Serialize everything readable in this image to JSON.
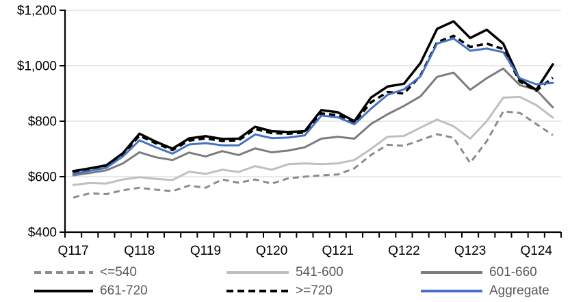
{
  "chart_data": {
    "type": "line",
    "title": "",
    "xlabel": "",
    "ylabel": "",
    "grid": true,
    "legend_position": "bottom",
    "y_axis": {
      "min": 400,
      "max": 1200,
      "step": 200,
      "tick_labels": [
        "$400",
        "$600",
        "$800",
        "$1,000",
        "$1,200"
      ]
    },
    "x_axis": {
      "shown_tick_labels": [
        "Q117",
        "Q118",
        "Q119",
        "Q120",
        "Q121",
        "Q122",
        "Q123",
        "Q124"
      ],
      "label_every_n_points": 4
    },
    "categories": [
      "Q117",
      "Q217",
      "Q317",
      "Q417",
      "Q118",
      "Q218",
      "Q318",
      "Q418",
      "Q119",
      "Q219",
      "Q319",
      "Q419",
      "Q120",
      "Q220",
      "Q320",
      "Q420",
      "Q121",
      "Q221",
      "Q321",
      "Q421",
      "Q122",
      "Q222",
      "Q322",
      "Q422",
      "Q123",
      "Q223",
      "Q323",
      "Q423",
      "Q124",
      "Q224"
    ],
    "series": [
      {
        "name": "<=540",
        "color": "#8c8c8c",
        "style": "dashed",
        "width": 3,
        "values": [
          525,
          540,
          537,
          551,
          560,
          553,
          548,
          568,
          560,
          590,
          578,
          590,
          575,
          594,
          600,
          605,
          608,
          630,
          678,
          715,
          711,
          732,
          753,
          740,
          650,
          728,
          835,
          830,
          790,
          750
        ]
      },
      {
        "name": "541-600",
        "color": "#bfbfbf",
        "style": "solid",
        "width": 3,
        "values": [
          570,
          577,
          575,
          590,
          598,
          592,
          588,
          618,
          610,
          625,
          617,
          638,
          625,
          645,
          648,
          645,
          648,
          660,
          700,
          744,
          747,
          777,
          806,
          782,
          737,
          800,
          885,
          888,
          858,
          813
        ]
      },
      {
        "name": "601-660",
        "color": "#7c7c7c",
        "style": "solid",
        "width": 3,
        "values": [
          605,
          613,
          623,
          648,
          688,
          670,
          660,
          687,
          673,
          692,
          678,
          702,
          688,
          694,
          706,
          737,
          744,
          737,
          790,
          825,
          855,
          890,
          960,
          975,
          913,
          955,
          990,
          930,
          913,
          850
        ]
      },
      {
        "name": "661-720",
        "color": "#000000",
        "style": "solid",
        "width": 3.5,
        "values": [
          620,
          630,
          641,
          685,
          755,
          726,
          701,
          738,
          746,
          736,
          737,
          780,
          764,
          761,
          764,
          840,
          832,
          800,
          885,
          925,
          935,
          1010,
          1133,
          1160,
          1100,
          1130,
          1080,
          950,
          913,
          1005
        ]
      },
      {
        "name": ">=720",
        "color": "#000000",
        "style": "dashed",
        "width": 3.5,
        "values": [
          616,
          626,
          637,
          680,
          748,
          720,
          696,
          730,
          738,
          729,
          731,
          772,
          757,
          755,
          759,
          828,
          822,
          795,
          868,
          905,
          900,
          965,
          1085,
          1108,
          1068,
          1080,
          1060,
          943,
          910,
          957
        ]
      },
      {
        "name": "Aggregate",
        "color": "#4472c4",
        "style": "solid",
        "width": 3,
        "values": [
          610,
          621,
          632,
          673,
          731,
          706,
          683,
          716,
          721,
          713,
          713,
          752,
          739,
          741,
          749,
          820,
          814,
          789,
          845,
          895,
          915,
          962,
          1080,
          1098,
          1054,
          1062,
          1049,
          955,
          933,
          938
        ]
      }
    ],
    "legend_rows": [
      [
        "<=540",
        "541-600",
        "601-660"
      ],
      [
        "661-720",
        ">=720",
        "Aggregate"
      ]
    ]
  },
  "style_tokens": {
    "gridline_color": "#d9d9d9",
    "axis_color": "#000000",
    "axis_label_color": "#000000",
    "legend_text_color": "#595959"
  }
}
